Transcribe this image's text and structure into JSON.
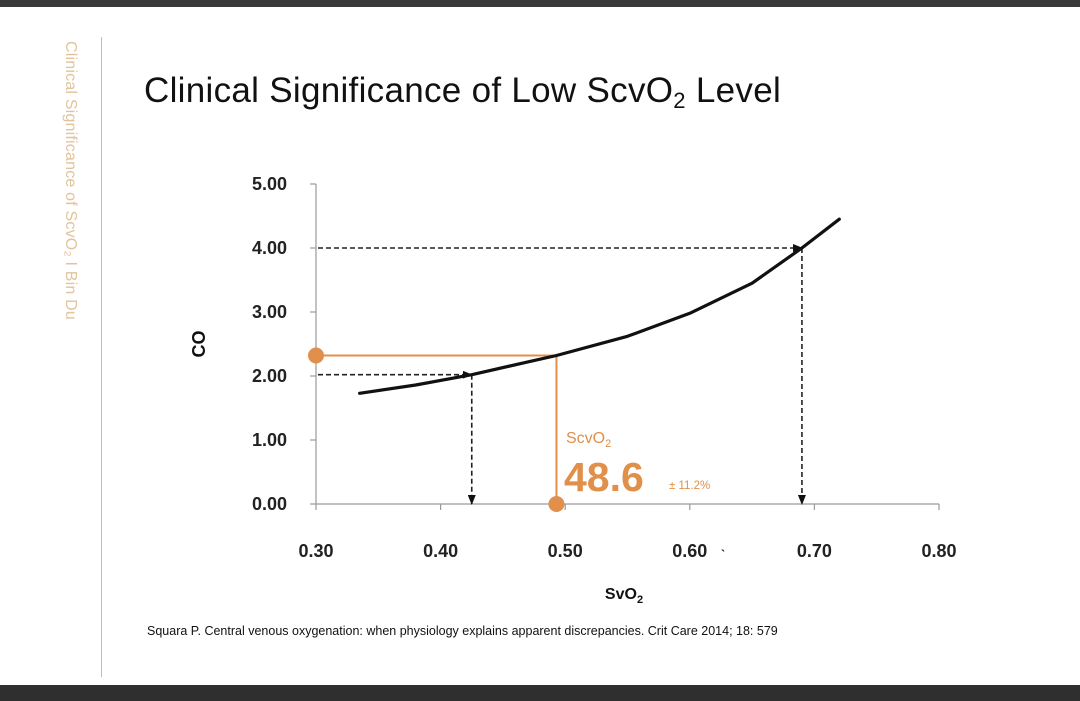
{
  "slide": {
    "side_label": "Clinical Significance of ScvO₂ I Bin Du",
    "title_main": "Clinical Significance of Low ScvO",
    "title_sub": "2",
    "title_tail": " Level",
    "citation": "Squara P. Central venous oxygenation: when physiology explains apparent discrepancies. Crit Care 2014; 18: 579"
  },
  "chart_data": {
    "type": "line",
    "xlabel": "SvO₂",
    "ylabel": "CO",
    "xlim": [
      0.3,
      0.8
    ],
    "ylim": [
      0,
      5
    ],
    "x_ticks": [
      "0.30",
      "0.40",
      "0.50",
      "0.60",
      "0.70",
      "0.80"
    ],
    "y_ticks": [
      "0.00",
      "1.00",
      "2.00",
      "3.00",
      "4.00",
      "5.00"
    ],
    "x_tick_values": [
      0.3,
      0.4,
      0.5,
      0.6,
      0.7,
      0.8
    ],
    "y_tick_values": [
      0,
      1,
      2,
      3,
      4,
      5
    ],
    "stray_tick_mark": "ˎ",
    "series": [
      {
        "name": "CO vs SvO₂",
        "x": [
          0.335,
          0.38,
          0.425,
          0.47,
          0.493,
          0.55,
          0.6,
          0.65,
          0.69,
          0.72
        ],
        "y": [
          1.73,
          1.86,
          2.02,
          2.22,
          2.32,
          2.62,
          2.98,
          3.45,
          4.0,
          4.45
        ]
      }
    ],
    "reference_lines": [
      {
        "name": "low",
        "from": [
          0.3,
          2.02
        ],
        "to": [
          0.425,
          2.02
        ],
        "down_to": [
          0.425,
          0
        ],
        "color": "#222222",
        "style": "dashed"
      },
      {
        "name": "high",
        "from": [
          0.3,
          4.0
        ],
        "to": [
          0.69,
          4.0
        ],
        "down_to": [
          0.69,
          0
        ],
        "color": "#222222",
        "style": "dashed"
      },
      {
        "name": "scvo2",
        "from": [
          0.3,
          2.32
        ],
        "to": [
          0.493,
          2.32
        ],
        "down_to": [
          0.493,
          0
        ],
        "color": "#e0904b",
        "style": "solid"
      }
    ],
    "annotation": {
      "label": "ScvO",
      "label_sub": "2",
      "value": "48.6",
      "range": "± 11.2%",
      "color": "#e0904b"
    }
  }
}
